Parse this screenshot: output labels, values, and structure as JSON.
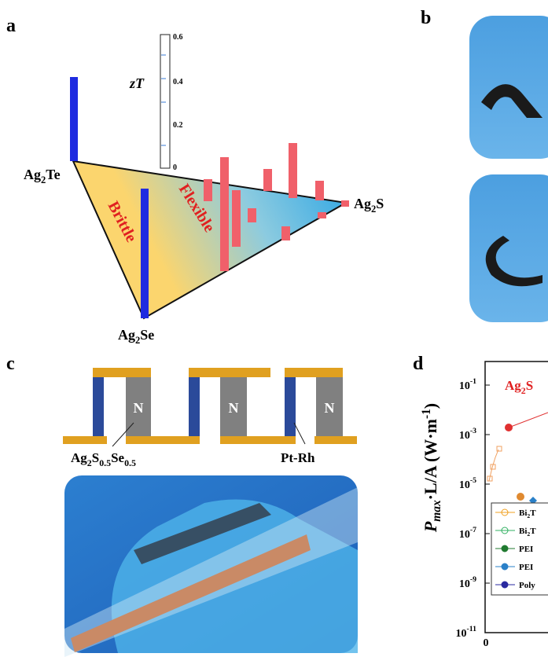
{
  "panels": {
    "a": {
      "letter": "a",
      "zt_label": "zT",
      "zt_ticks": [
        "0.6",
        "0.4",
        "0.2",
        "0"
      ],
      "ag2te": [
        "Ag",
        "2",
        "Te"
      ],
      "ag2s": [
        "Ag",
        "2",
        "S"
      ],
      "ag2se": [
        "Ag",
        "2",
        "Se"
      ],
      "brittle": "Brittle",
      "flexible": "Flexible"
    },
    "b": {
      "letter": "b"
    },
    "c": {
      "letter": "c",
      "leg_label": "N",
      "material": [
        "Ag",
        "2",
        "S",
        "0.5",
        "Se",
        "0.5"
      ],
      "wire": "Pt-Rh"
    },
    "d": {
      "letter": "d",
      "title": [
        "Ag",
        "2",
        "S"
      ],
      "y_label": [
        "P",
        "max",
        "·L/A (W·m",
        "-1",
        ")"
      ],
      "y_ticks": [
        [
          "10",
          "-1"
        ],
        [
          "10",
          "-3"
        ],
        [
          "10",
          "-5"
        ],
        [
          "10",
          "-7"
        ],
        [
          "10",
          "-9"
        ],
        [
          "10",
          "-11"
        ]
      ],
      "x_tick": "0",
      "legend": [
        [
          "Bi",
          "2",
          "T"
        ],
        [
          "Bi",
          "2",
          "T"
        ],
        [
          "PEI"
        ],
        [
          "PEI"
        ],
        [
          "Poly"
        ]
      ]
    }
  }
}
